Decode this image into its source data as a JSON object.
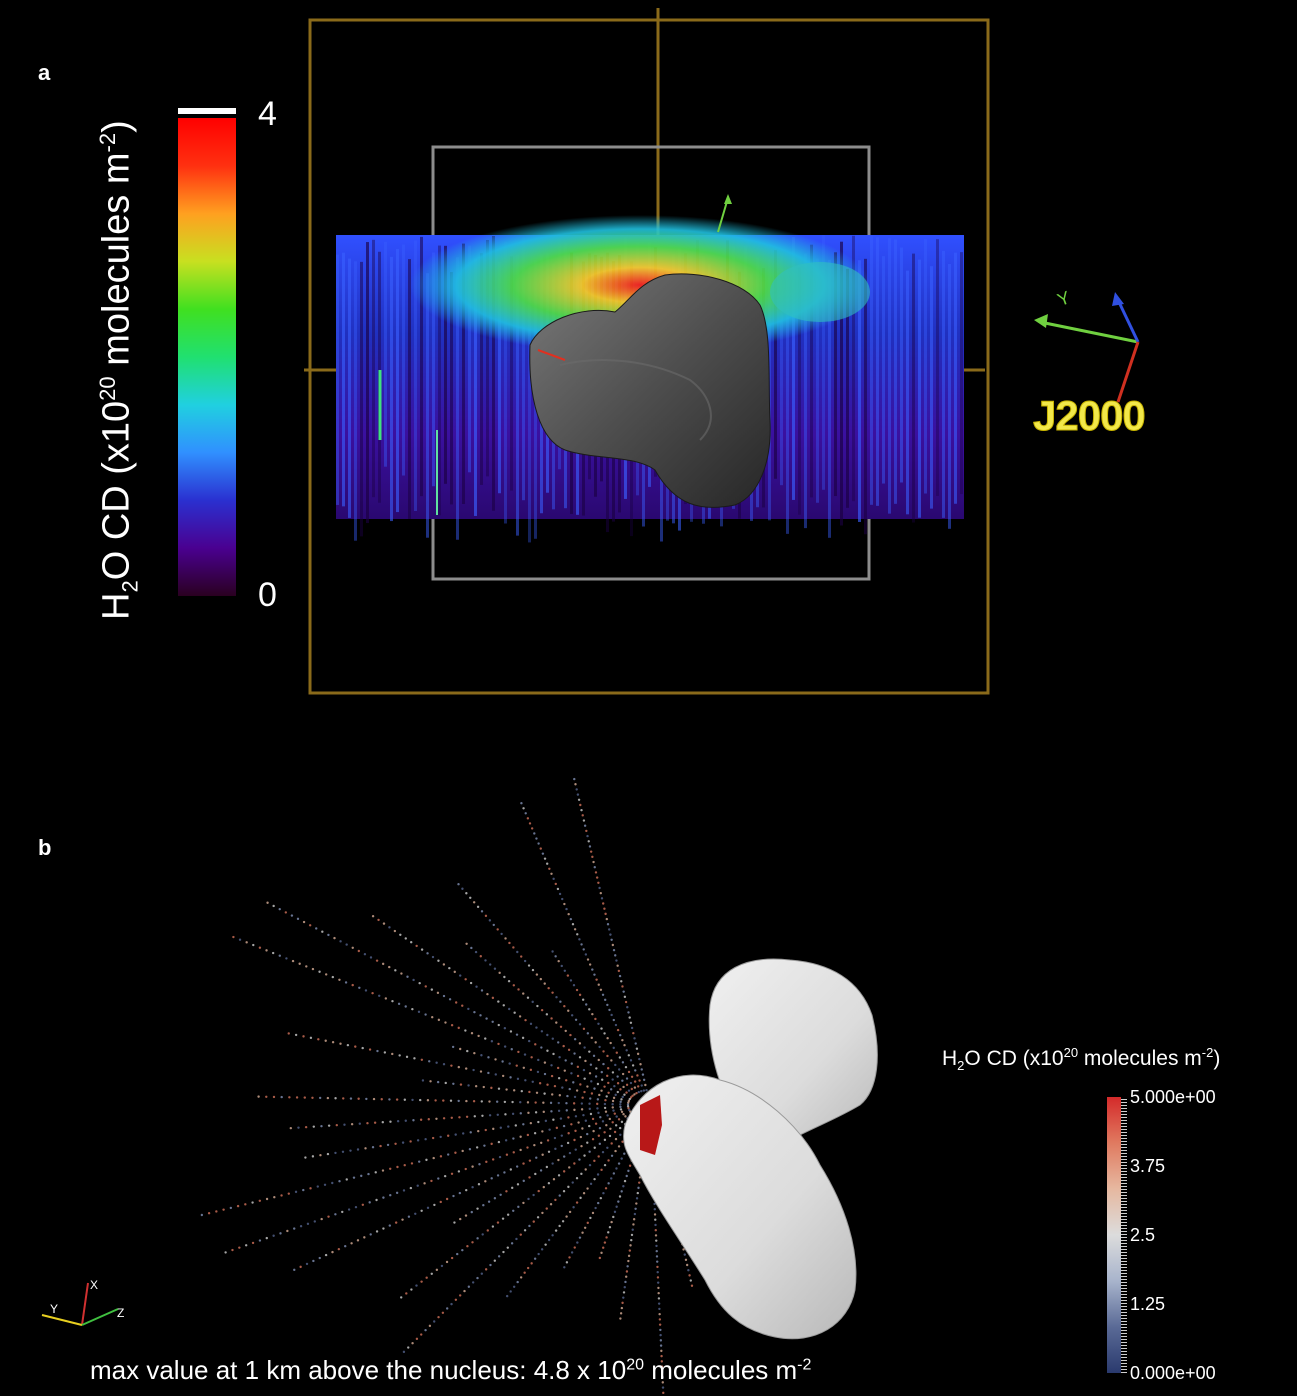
{
  "panel_a": {
    "label": "a",
    "colorbar": {
      "title_pre": "H",
      "title_sub": "2",
      "title_mid": "O CD (x10",
      "title_sup1": "20",
      "title_post": " molecules m",
      "title_sup2": "-2",
      "title_end": ")",
      "max_label": "4",
      "min_label": "0",
      "gradient": [
        "#2a0020",
        "#4a0090",
        "#2a30d0",
        "#3090ff",
        "#20d0e0",
        "#20e070",
        "#40e020",
        "#c8e020",
        "#ffa020",
        "#ff3010",
        "#ff0000"
      ]
    },
    "frame_label": "J2000",
    "axis_letters": {
      "y": "Y"
    }
  },
  "panel_b": {
    "label": "b",
    "colorbar": {
      "title_pre": "H",
      "title_sub": "2",
      "title_mid": "O CD (x10",
      "title_sup1": "20",
      "title_post": " molecules m",
      "title_sup2": "-2",
      "title_end": ")",
      "ticks": [
        "5.000e+00",
        "3.75",
        "2.5",
        "1.25",
        "0.000e+00"
      ],
      "gradient": [
        "#d42a2a",
        "#e07a60",
        "#e6b8a0",
        "#dcdcdc",
        "#a8b4cc",
        "#5a6a96",
        "#2a3a6e"
      ]
    },
    "axes": {
      "x": "X",
      "y": "Y",
      "z": "Z"
    },
    "caption": {
      "text_pre": "max value at 1 km above the nucleus: 4.8 x 10",
      "sup1": "20",
      "text_post": " molecules m",
      "sup2": "-2"
    }
  }
}
